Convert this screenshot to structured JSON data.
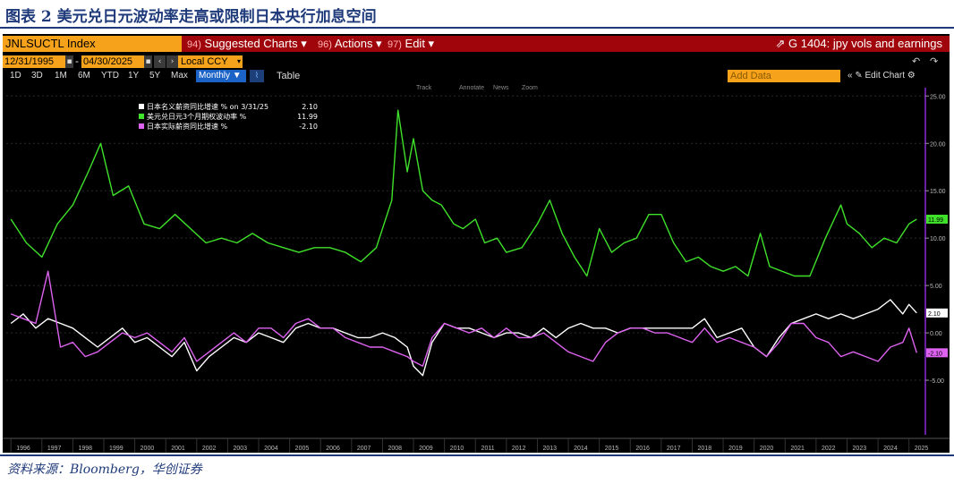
{
  "figure": {
    "title": "图表 2 美元兑日元波动率走高或限制日本央行加息空间",
    "source": "资料来源：Bloomberg，华创证券"
  },
  "terminal": {
    "ticker": "JNLSUCTL Index",
    "menu": [
      {
        "num": "94)",
        "label": "Suggested Charts ▾"
      },
      {
        "num": "96)",
        "label": "Actions ▾"
      },
      {
        "num": "97)",
        "label": "Edit ▾"
      }
    ],
    "graph_title": "G 1404: jpy vols and earnings",
    "start_date": "12/31/1995",
    "end_date": "04/30/2025",
    "currency": "Local CCY",
    "periods": [
      "1D",
      "3D",
      "1M",
      "6M",
      "YTD",
      "1Y",
      "5Y",
      "Max"
    ],
    "frequency": "Monthly ▼",
    "table_label": "Table",
    "add_data_placeholder": "Add Data",
    "edit_chart_label": "Edit Chart",
    "toolbar": [
      "Track",
      "Annotate",
      "News",
      "Zoom"
    ]
  },
  "colors": {
    "accent_orange": "#f7a21b",
    "menu_red": "#a0050b",
    "title_blue": "#1f3a7a",
    "green_series": "#3fe12a",
    "white_series": "#ffffff",
    "pink_series": "#dd62ef",
    "axis_purple": "#8a2bd3"
  },
  "chart_data": {
    "type": "line",
    "x_axis_years": [
      "1996",
      "1997",
      "1998",
      "1999",
      "2000",
      "2001",
      "2002",
      "2003",
      "2004",
      "2005",
      "2006",
      "2007",
      "2008",
      "2009",
      "2010",
      "2011",
      "2012",
      "2013",
      "2014",
      "2015",
      "2016",
      "2017",
      "2018",
      "2019",
      "2020",
      "2021",
      "2022",
      "2023",
      "2024",
      "2025"
    ],
    "y_ticks": [
      25,
      20,
      15,
      10,
      5,
      0,
      -5
    ],
    "y_tick_labels": [
      "25.00",
      "20.00",
      "15.00",
      "10.00",
      "5.00",
      "0.00",
      "-5.00"
    ],
    "ylim": [
      -10,
      25.5
    ],
    "legend": [
      {
        "text": "日本名义薪资同比增速 % on 3/31/25",
        "value": "2.10",
        "color": "#ffffff"
      },
      {
        "text": "美元兑日元3个月期权波动率 %",
        "value": "11.99",
        "color": "#3fe12a"
      },
      {
        "text": "日本实际薪资同比增速 %",
        "value": "-2.10",
        "color": "#dd62ef"
      }
    ],
    "last_value_tags": [
      {
        "value": "11.99",
        "color": "#3fe12a"
      },
      {
        "value": "2.10",
        "color": "#ffffff"
      },
      {
        "value": "-2.10",
        "color": "#dd62ef"
      }
    ],
    "series": [
      {
        "name": "美元兑日元3个月期权波动率 %",
        "color": "#3fe12a",
        "x": [
          1996.0,
          1996.5,
          1997.0,
          1997.5,
          1998.0,
          1998.5,
          1998.9,
          1999.3,
          1999.8,
          2000.3,
          2000.8,
          2001.3,
          2001.8,
          2002.3,
          2002.8,
          2003.3,
          2003.8,
          2004.3,
          2004.8,
          2005.3,
          2005.8,
          2006.3,
          2006.8,
          2007.3,
          2007.8,
          2008.0,
          2008.3,
          2008.5,
          2008.8,
          2009.0,
          2009.3,
          2009.6,
          2009.9,
          2010.3,
          2010.6,
          2011.0,
          2011.3,
          2011.7,
          2012.0,
          2012.5,
          2013.0,
          2013.4,
          2013.8,
          2014.2,
          2014.6,
          2015.0,
          2015.4,
          2015.8,
          2016.2,
          2016.6,
          2017.0,
          2017.4,
          2017.8,
          2018.2,
          2018.6,
          2019.0,
          2019.4,
          2019.8,
          2020.2,
          2020.5,
          2020.9,
          2021.3,
          2021.8,
          2022.3,
          2022.8,
          2023.0,
          2023.4,
          2023.8,
          2024.2,
          2024.6,
          2025.0,
          2025.25
        ],
        "values": [
          12.0,
          9.5,
          8.0,
          11.5,
          13.5,
          17.0,
          20.0,
          14.5,
          15.5,
          11.5,
          11.0,
          12.5,
          11.0,
          9.5,
          10.0,
          9.5,
          10.5,
          9.5,
          9.0,
          8.5,
          9.0,
          9.0,
          8.5,
          7.5,
          9.0,
          11.0,
          14.0,
          23.5,
          17.0,
          20.5,
          15.0,
          14.0,
          13.5,
          11.5,
          11.0,
          12.0,
          9.5,
          10.0,
          8.5,
          9.0,
          11.5,
          14.0,
          10.5,
          8.0,
          6.0,
          11.0,
          8.5,
          9.5,
          10.0,
          12.5,
          12.5,
          9.5,
          7.5,
          8.0,
          7.0,
          6.5,
          7.0,
          6.0,
          10.5,
          7.0,
          6.5,
          6.0,
          6.0,
          10.0,
          13.5,
          11.5,
          10.5,
          9.0,
          10.0,
          9.5,
          11.5,
          12.0
        ]
      },
      {
        "name": "日本名义薪资同比增速 %",
        "color": "#ffffff",
        "x": [
          1996.0,
          1996.4,
          1996.8,
          1997.2,
          1997.6,
          1998.0,
          1998.4,
          1998.8,
          1999.2,
          1999.6,
          2000.0,
          2000.4,
          2000.8,
          2001.2,
          2001.6,
          2002.0,
          2002.4,
          2002.8,
          2003.2,
          2003.6,
          2004.0,
          2004.4,
          2004.8,
          2005.2,
          2005.6,
          2006.0,
          2006.4,
          2006.8,
          2007.2,
          2007.6,
          2008.0,
          2008.4,
          2008.8,
          2009.0,
          2009.3,
          2009.6,
          2010.0,
          2010.4,
          2010.8,
          2011.2,
          2011.6,
          2012.0,
          2012.4,
          2012.8,
          2013.2,
          2013.6,
          2014.0,
          2014.4,
          2014.8,
          2015.2,
          2015.6,
          2016.0,
          2016.4,
          2016.8,
          2017.2,
          2017.6,
          2018.0,
          2018.4,
          2018.8,
          2019.2,
          2019.6,
          2020.0,
          2020.4,
          2020.8,
          2021.2,
          2021.6,
          2022.0,
          2022.4,
          2022.8,
          2023.2,
          2023.6,
          2024.0,
          2024.4,
          2024.8,
          2025.0,
          2025.25
        ],
        "values": [
          1.0,
          2.0,
          0.5,
          1.5,
          1.0,
          0.5,
          -0.5,
          -1.5,
          -0.5,
          0.5,
          -1.0,
          -0.5,
          -1.5,
          -2.5,
          -1.0,
          -4.0,
          -2.5,
          -1.5,
          -0.5,
          -1.0,
          0.0,
          -0.5,
          -1.0,
          0.5,
          1.0,
          0.5,
          0.5,
          0.0,
          -0.5,
          -0.5,
          0.0,
          -0.5,
          -1.5,
          -3.5,
          -4.5,
          -1.0,
          1.0,
          0.5,
          0.5,
          0.0,
          -0.5,
          0.0,
          0.0,
          -0.5,
          0.5,
          -0.5,
          0.5,
          1.0,
          0.5,
          0.5,
          0.0,
          0.5,
          0.5,
          0.5,
          0.5,
          0.5,
          0.5,
          1.5,
          -0.5,
          0.0,
          0.5,
          -1.5,
          -2.5,
          -0.5,
          1.0,
          1.5,
          2.0,
          1.5,
          2.0,
          1.5,
          2.0,
          2.5,
          3.5,
          2.0,
          3.0,
          2.1
        ]
      },
      {
        "name": "日本实际薪资同比增速 %",
        "color": "#dd62ef",
        "x": [
          1996.0,
          1996.4,
          1996.8,
          1997.2,
          1997.6,
          1998.0,
          1998.4,
          1998.8,
          1999.2,
          1999.6,
          2000.0,
          2000.4,
          2000.8,
          2001.2,
          2001.6,
          2002.0,
          2002.4,
          2002.8,
          2003.2,
          2003.6,
          2004.0,
          2004.4,
          2004.8,
          2005.2,
          2005.6,
          2006.0,
          2006.4,
          2006.8,
          2007.2,
          2007.6,
          2008.0,
          2008.4,
          2008.8,
          2009.0,
          2009.3,
          2009.6,
          2010.0,
          2010.4,
          2010.8,
          2011.2,
          2011.6,
          2012.0,
          2012.4,
          2012.8,
          2013.2,
          2013.6,
          2014.0,
          2014.4,
          2014.8,
          2015.2,
          2015.6,
          2016.0,
          2016.4,
          2016.8,
          2017.2,
          2017.6,
          2018.0,
          2018.4,
          2018.8,
          2019.2,
          2019.6,
          2020.0,
          2020.4,
          2020.8,
          2021.2,
          2021.6,
          2022.0,
          2022.4,
          2022.8,
          2023.2,
          2023.6,
          2024.0,
          2024.4,
          2024.8,
          2025.0,
          2025.25
        ],
        "values": [
          2.0,
          1.5,
          1.0,
          6.5,
          -1.5,
          -1.0,
          -2.5,
          -2.0,
          -1.0,
          0.0,
          -0.5,
          0.0,
          -1.0,
          -2.0,
          -0.5,
          -3.0,
          -2.0,
          -1.0,
          0.0,
          -1.0,
          0.5,
          0.5,
          -0.5,
          1.0,
          1.5,
          0.5,
          0.5,
          -0.5,
          -1.0,
          -1.5,
          -1.5,
          -2.0,
          -2.5,
          -3.0,
          -3.5,
          -0.5,
          1.0,
          0.5,
          0.0,
          0.5,
          -0.5,
          0.5,
          -0.5,
          -0.5,
          0.0,
          -1.0,
          -2.0,
          -2.5,
          -3.0,
          -1.0,
          0.0,
          0.5,
          0.5,
          0.0,
          0.0,
          -0.5,
          -1.0,
          0.5,
          -1.0,
          -0.5,
          -1.0,
          -1.5,
          -2.5,
          -1.0,
          1.0,
          1.0,
          -0.5,
          -1.0,
          -2.5,
          -2.0,
          -2.5,
          -3.0,
          -1.5,
          -1.0,
          0.5,
          -2.1
        ]
      }
    ]
  }
}
